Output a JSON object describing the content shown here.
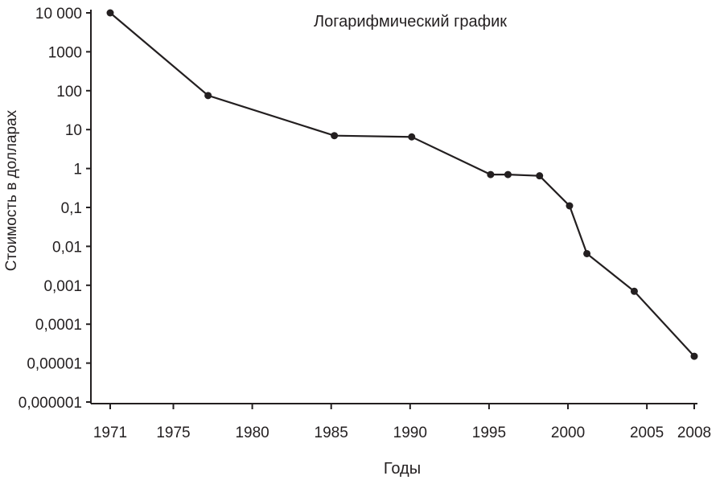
{
  "chart_data": {
    "type": "line",
    "title": "Логарифмический график",
    "xlabel": "Годы",
    "ylabel": "Стоимость в долларах",
    "y_scale": "log",
    "ylim": [
      1e-06,
      10000
    ],
    "x_ticks": [
      "1971",
      "1975",
      "1980",
      "1985",
      "1990",
      "1995",
      "2000",
      "2005",
      "2008"
    ],
    "y_ticks": [
      "10 000",
      "1000",
      "100",
      "10",
      "1",
      "0,1",
      "0,01",
      "0,001",
      "0,0001",
      "0,00001",
      "0,000001"
    ],
    "series": [
      {
        "color": "#231f20",
        "points": [
          {
            "x": 1971,
            "y": 10000
          },
          {
            "x": 1977.2,
            "y": 75
          },
          {
            "x": 1985.2,
            "y": 7
          },
          {
            "x": 1990.1,
            "y": 6.5
          },
          {
            "x": 1995.1,
            "y": 0.7
          },
          {
            "x": 1996.2,
            "y": 0.7
          },
          {
            "x": 1998.2,
            "y": 0.65
          },
          {
            "x": 2000.1,
            "y": 0.11
          },
          {
            "x": 2001.2,
            "y": 0.0065
          },
          {
            "x": 2004.2,
            "y": 0.0007
          },
          {
            "x": 2008,
            "y": 1.5e-05
          }
        ]
      }
    ]
  }
}
